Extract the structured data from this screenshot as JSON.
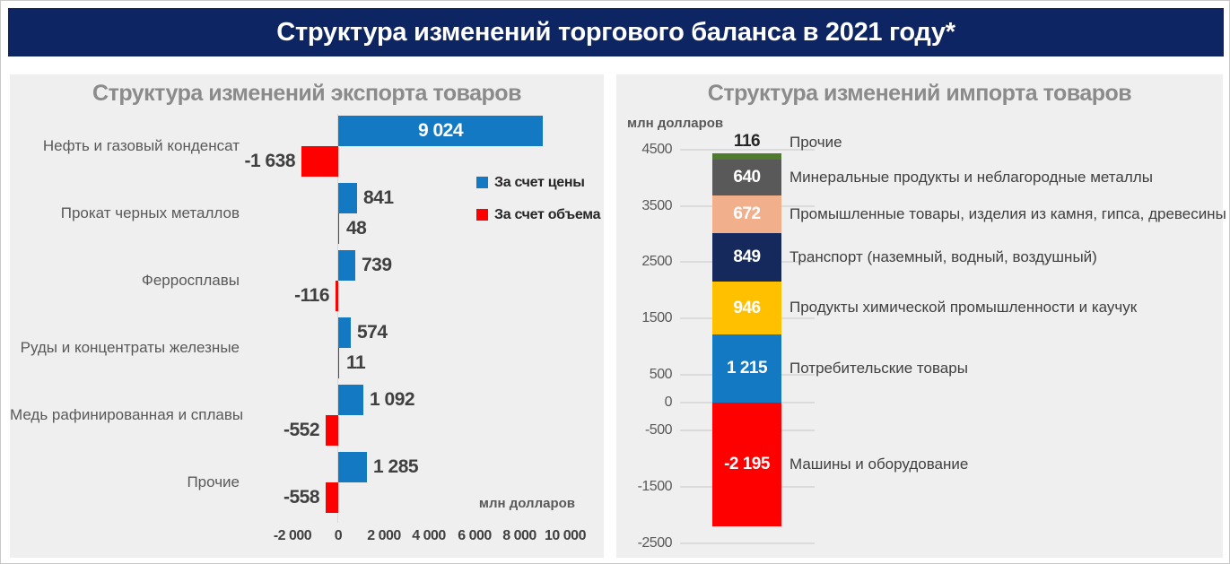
{
  "header": {
    "title": "Структура изменений торгового баланса в 2021 году*"
  },
  "colors": {
    "header_bg": "#0e2563",
    "panel_bg": "#f0efef",
    "title_gray": "#8c8b8b",
    "category_gray": "#595959",
    "value_dark": "#404040",
    "axis_line": "#d9d9d9",
    "price_blue": "#1279c2",
    "volume_red": "#fe0000"
  },
  "chart_data": [
    {
      "type": "bar",
      "orientation": "horizontal",
      "title": "Структура изменений экспорта товаров",
      "xlabel": "млн долларов",
      "xlim": [
        -2000,
        10000
      ],
      "x_ticks": [
        -2000,
        0,
        2000,
        4000,
        6000,
        8000,
        10000
      ],
      "x_tick_labels": [
        "-2 000",
        "0",
        "2 000",
        "4 000",
        "6 000",
        "8 000",
        "10 000"
      ],
      "grid": false,
      "legend_position": "right",
      "categories": [
        "Нефть и газовый конденсат",
        "Прокат черных металлов",
        "Ферросплавы",
        "Руды и концентраты железные",
        "Медь рафинированная и сплавы",
        "Прочие"
      ],
      "series": [
        {
          "name": "За счет цены",
          "color": "#1279c2",
          "values": [
            9024,
            841,
            739,
            574,
            1092,
            1285
          ],
          "labels": [
            "9 024",
            "841",
            "739",
            "574",
            "1 092",
            "1 285"
          ]
        },
        {
          "name": "За счет объема",
          "color": "#fe0000",
          "values": [
            -1638,
            48,
            -116,
            11,
            -552,
            -558
          ],
          "labels": [
            "-1 638",
            "48",
            "-116",
            "11",
            "-552",
            "-558"
          ]
        }
      ]
    },
    {
      "type": "bar",
      "subtype": "stacked-column",
      "title": "Структура изменений импорта товаров",
      "ylabel": "млн долларов",
      "ylim": [
        -2500,
        4500
      ],
      "y_ticks": [
        4500,
        3500,
        2500,
        1500,
        500,
        0,
        -500,
        -1500,
        -2500
      ],
      "y_tick_labels": [
        "4500",
        "3500",
        "2500",
        "1500",
        "500",
        "0",
        "-500",
        "-1500",
        "-2500"
      ],
      "grid": true,
      "segments": [
        {
          "label": "Прочие",
          "value": 116,
          "display": "116",
          "color": "#4e7b2e"
        },
        {
          "label": "Минеральные продукты и неблагородные металлы",
          "value": 640,
          "display": "640",
          "color": "#595959"
        },
        {
          "label": "Промышленные товары, изделия из камня, гипса, древесины",
          "value": 672,
          "display": "672",
          "color": "#f1af8b"
        },
        {
          "label": "Транспорт (наземный, водный, воздушный)",
          "value": 849,
          "display": "849",
          "color": "#16295c"
        },
        {
          "label": "Продукты химической промышленности и каучук",
          "value": 946,
          "display": "946",
          "color": "#ffc000"
        },
        {
          "label": "Потребительские товары",
          "value": 1215,
          "display": "1 215",
          "color": "#1279c2"
        },
        {
          "label": "Машины и оборудование",
          "value": -2195,
          "display": "-2 195",
          "color": "#fe0000"
        }
      ]
    }
  ]
}
